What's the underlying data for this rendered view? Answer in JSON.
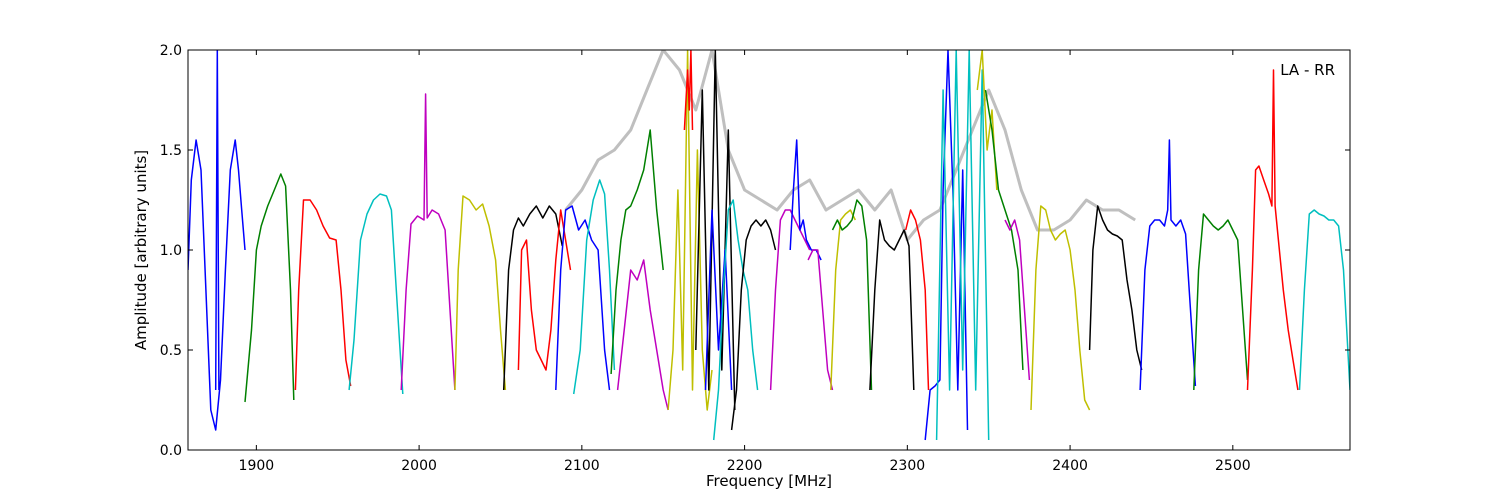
{
  "chart_data": {
    "type": "line",
    "title": "",
    "xlabel": "Frequency [MHz]",
    "ylabel": "Amplitude [arbitrary units]",
    "xlim": [
      1858,
      2572
    ],
    "ylim": [
      0,
      2.0
    ],
    "xticks": [
      1900,
      2000,
      2100,
      2200,
      2300,
      2400,
      2500
    ],
    "yticks": [
      0.0,
      0.5,
      1.0,
      1.5,
      2.0
    ],
    "xtick_labels": [
      "1900",
      "2000",
      "2100",
      "2200",
      "2300",
      "2400",
      "2500"
    ],
    "ytick_labels": [
      "0.0",
      "0.5",
      "1.0",
      "1.5",
      "2.0"
    ],
    "annotation": "LA - RR",
    "grid": false,
    "legend": "none",
    "background_color": "#bfbfbf",
    "background_series": [
      {
        "x": [
          2090,
          2100,
          2110,
          2120,
          2130,
          2140,
          2150,
          2160,
          2170,
          2180,
          2190,
          2200,
          2210,
          2220,
          2230,
          2240,
          2250,
          2260,
          2270,
          2280,
          2290,
          2300,
          2310,
          2320,
          2330,
          2340,
          2350,
          2360,
          2370,
          2380,
          2390,
          2400,
          2410,
          2420,
          2430,
          2440
        ],
        "y": [
          1.2,
          1.3,
          1.45,
          1.5,
          1.6,
          1.8,
          2.0,
          1.9,
          1.7,
          2.0,
          1.5,
          1.3,
          1.25,
          1.2,
          1.3,
          1.35,
          1.2,
          1.25,
          1.3,
          1.2,
          1.3,
          1.05,
          1.15,
          1.2,
          1.4,
          1.6,
          1.8,
          1.6,
          1.3,
          1.1,
          1.1,
          1.15,
          1.25,
          1.2,
          1.2,
          1.15
        ]
      }
    ],
    "series": [
      {
        "color": "#0000ff",
        "x": [
          1858,
          1860,
          1863,
          1866,
          1869,
          1872,
          1875,
          1878,
          1881,
          1884,
          1887,
          1889,
          1891,
          1893
        ],
        "y": [
          0.9,
          1.35,
          1.55,
          1.4,
          0.8,
          0.2,
          0.1,
          0.35,
          0.9,
          1.4,
          1.55,
          1.4,
          1.2,
          1.0
        ]
      },
      {
        "color": "#0000ff",
        "x": [
          1875,
          1876,
          1877
        ],
        "y": [
          0.3,
          2.0,
          0.3
        ]
      },
      {
        "color": "#008000",
        "x": [
          1893,
          1897,
          1900,
          1903,
          1907,
          1911,
          1915,
          1918,
          1921,
          1923
        ],
        "y": [
          0.24,
          0.6,
          1.0,
          1.12,
          1.22,
          1.3,
          1.38,
          1.32,
          0.8,
          0.25
        ]
      },
      {
        "color": "#ff0000",
        "x": [
          1924,
          1926,
          1929,
          1933,
          1937,
          1941,
          1945,
          1949,
          1952,
          1955,
          1958
        ],
        "y": [
          0.3,
          0.8,
          1.25,
          1.25,
          1.2,
          1.12,
          1.06,
          1.05,
          0.8,
          0.45,
          0.32
        ]
      },
      {
        "color": "#00bfbf",
        "x": [
          1957,
          1960,
          1964,
          1968,
          1972,
          1976,
          1980,
          1983,
          1986,
          1990
        ],
        "y": [
          0.3,
          0.55,
          1.05,
          1.18,
          1.25,
          1.28,
          1.27,
          1.2,
          0.8,
          0.28
        ]
      },
      {
        "color": "#bf00bf",
        "x": [
          1989,
          1992,
          1995,
          1999,
          2003,
          2004,
          2005,
          2008,
          2012,
          2016,
          2019,
          2022
        ],
        "y": [
          0.3,
          0.8,
          1.13,
          1.17,
          1.15,
          1.78,
          1.16,
          1.2,
          1.18,
          1.1,
          0.7,
          0.3
        ]
      },
      {
        "color": "#bfbf00",
        "x": [
          2022,
          2024,
          2027,
          2031,
          2035,
          2039,
          2043,
          2047,
          2050,
          2053
        ],
        "y": [
          0.3,
          0.9,
          1.27,
          1.25,
          1.2,
          1.23,
          1.12,
          0.95,
          0.6,
          0.3
        ]
      },
      {
        "color": "#000000",
        "x": [
          2052,
          2055,
          2058,
          2061,
          2064,
          2068,
          2072,
          2076,
          2080,
          2084,
          2088
        ],
        "y": [
          0.3,
          0.9,
          1.1,
          1.16,
          1.12,
          1.18,
          1.22,
          1.16,
          1.22,
          1.18,
          1.02
        ]
      },
      {
        "color": "#ff0000",
        "x": [
          2061,
          2063,
          2066,
          2069,
          2072,
          2075,
          2078,
          2081,
          2084,
          2087,
          2090,
          2093
        ],
        "y": [
          0.4,
          1.0,
          1.05,
          0.7,
          0.5,
          0.45,
          0.4,
          0.6,
          0.95,
          1.2,
          1.05,
          0.9
        ]
      },
      {
        "color": "#0000ff",
        "x": [
          2084,
          2087,
          2090,
          2094,
          2098,
          2102,
          2106,
          2110,
          2114,
          2117
        ],
        "y": [
          0.3,
          0.9,
          1.2,
          1.22,
          1.1,
          1.15,
          1.05,
          1.0,
          0.5,
          0.3
        ]
      },
      {
        "color": "#00bfbf",
        "x": [
          2095,
          2099,
          2103,
          2107,
          2111,
          2114,
          2117,
          2120
        ],
        "y": [
          0.28,
          0.5,
          1.05,
          1.25,
          1.35,
          1.28,
          0.9,
          0.4
        ]
      },
      {
        "color": "#008000",
        "x": [
          2118,
          2121,
          2124,
          2127,
          2130,
          2134,
          2138,
          2142,
          2146,
          2150
        ],
        "y": [
          0.38,
          0.8,
          1.05,
          1.2,
          1.22,
          1.3,
          1.4,
          1.6,
          1.2,
          0.9
        ]
      },
      {
        "color": "#bf00bf",
        "x": [
          2122,
          2126,
          2130,
          2134,
          2138,
          2142,
          2146,
          2150,
          2153
        ],
        "y": [
          0.3,
          0.6,
          0.9,
          0.85,
          0.95,
          0.7,
          0.5,
          0.3,
          0.2
        ]
      },
      {
        "color": "#bfbf00",
        "x": [
          2153,
          2156,
          2159,
          2162,
          2165,
          2168,
          2171,
          2174,
          2177,
          2180
        ],
        "y": [
          0.2,
          0.5,
          1.3,
          0.4,
          2.0,
          0.3,
          1.5,
          0.5,
          0.2,
          0.4
        ]
      },
      {
        "color": "#ff0000",
        "x": [
          2163,
          2165,
          2166,
          2167,
          2168
        ],
        "y": [
          1.6,
          1.9,
          1.7,
          2.0,
          1.6
        ]
      },
      {
        "color": "#000000",
        "x": [
          2170,
          2174,
          2178,
          2182,
          2186,
          2190,
          2194
        ],
        "y": [
          0.5,
          1.8,
          0.3,
          2.0,
          0.4,
          1.6,
          0.2
        ]
      },
      {
        "color": "#0000ff",
        "x": [
          2176,
          2180,
          2184,
          2188,
          2192
        ],
        "y": [
          0.3,
          1.2,
          0.5,
          1.0,
          0.3
        ]
      },
      {
        "color": "#00bfbf",
        "x": [
          2181,
          2184,
          2187,
          2190,
          2193,
          2196,
          2199,
          2202,
          2205,
          2208
        ],
        "y": [
          0.05,
          0.3,
          0.8,
          1.2,
          1.25,
          1.05,
          0.9,
          0.8,
          0.5,
          0.3
        ]
      },
      {
        "color": "#000000",
        "x": [
          2192,
          2195,
          2198,
          2201,
          2204,
          2207,
          2210,
          2213,
          2216,
          2219
        ],
        "y": [
          0.1,
          0.3,
          0.8,
          1.05,
          1.12,
          1.15,
          1.12,
          1.15,
          1.1,
          1.0
        ]
      },
      {
        "color": "#bf00bf",
        "x": [
          2216,
          2219,
          2222,
          2225,
          2228,
          2231,
          2234,
          2237,
          2240
        ],
        "y": [
          0.3,
          0.8,
          1.15,
          1.2,
          1.2,
          1.15,
          1.1,
          1.05,
          1.0
        ]
      },
      {
        "color": "#0000ff",
        "x": [
          2228,
          2230,
          2232,
          2234,
          2236,
          2238,
          2241,
          2244,
          2247
        ],
        "y": [
          1.0,
          1.3,
          1.55,
          1.1,
          1.15,
          1.05,
          1.0,
          1.0,
          0.95
        ]
      },
      {
        "color": "#bf00bf",
        "x": [
          2239,
          2242,
          2245,
          2248,
          2251,
          2254
        ],
        "y": [
          0.95,
          1.0,
          1.0,
          0.7,
          0.4,
          0.3
        ]
      },
      {
        "color": "#bfbf00",
        "x": [
          2253,
          2256,
          2259,
          2262,
          2265,
          2268
        ],
        "y": [
          0.3,
          0.9,
          1.15,
          1.18,
          1.2,
          1.15
        ]
      },
      {
        "color": "#008000",
        "x": [
          2254,
          2257,
          2260,
          2263,
          2266,
          2269,
          2272,
          2275,
          2278
        ],
        "y": [
          1.1,
          1.15,
          1.1,
          1.12,
          1.15,
          1.25,
          1.22,
          1.05,
          0.3
        ]
      },
      {
        "color": "#000000",
        "x": [
          2277,
          2280,
          2283,
          2286,
          2289,
          2292,
          2295,
          2298,
          2301,
          2304
        ],
        "y": [
          0.3,
          0.8,
          1.15,
          1.05,
          1.02,
          1.0,
          1.05,
          1.1,
          1.02,
          0.3
        ]
      },
      {
        "color": "#ff0000",
        "x": [
          2299,
          2302,
          2305,
          2308,
          2311,
          2313
        ],
        "y": [
          1.1,
          1.2,
          1.15,
          1.05,
          0.8,
          0.3
        ]
      },
      {
        "color": "#0000ff",
        "x": [
          2311,
          2314,
          2317,
          2320,
          2322,
          2325,
          2328,
          2331,
          2334,
          2337
        ],
        "y": [
          0.05,
          0.3,
          0.32,
          0.35,
          1.3,
          2.0,
          1.3,
          0.3,
          1.4,
          0.1
        ]
      },
      {
        "color": "#00bfbf",
        "x": [
          2318,
          2322,
          2326,
          2330,
          2334,
          2338,
          2342,
          2346,
          2350
        ],
        "y": [
          0.05,
          1.8,
          0.3,
          2.0,
          0.4,
          2.0,
          0.3,
          1.9,
          0.05
        ]
      },
      {
        "color": "#bfbf00",
        "x": [
          2343,
          2346,
          2349,
          2352,
          2355
        ],
        "y": [
          1.8,
          2.0,
          1.5,
          1.7,
          1.3
        ]
      },
      {
        "color": "#008000",
        "x": [
          2348,
          2352,
          2356,
          2360,
          2364,
          2368,
          2371
        ],
        "y": [
          1.8,
          1.6,
          1.3,
          1.2,
          1.1,
          0.9,
          0.4
        ]
      },
      {
        "color": "#bf00bf",
        "x": [
          2360,
          2363,
          2366,
          2369,
          2372,
          2375
        ],
        "y": [
          1.15,
          1.1,
          1.15,
          1.05,
          0.7,
          0.35
        ]
      },
      {
        "color": "#bfbf00",
        "x": [
          2376,
          2379,
          2382,
          2385,
          2388,
          2391,
          2394,
          2397,
          2400,
          2403,
          2406,
          2409,
          2412
        ],
        "y": [
          0.2,
          0.9,
          1.22,
          1.2,
          1.1,
          1.05,
          1.08,
          1.1,
          1.0,
          0.8,
          0.5,
          0.25,
          0.2
        ]
      },
      {
        "color": "#000000",
        "x": [
          2412,
          2414,
          2417,
          2420,
          2423,
          2426,
          2429,
          2432,
          2435,
          2438,
          2441,
          2444
        ],
        "y": [
          0.5,
          1.0,
          1.22,
          1.15,
          1.1,
          1.08,
          1.07,
          1.05,
          0.85,
          0.7,
          0.5,
          0.4
        ]
      },
      {
        "color": "#0000ff",
        "x": [
          2443,
          2446,
          2449,
          2452,
          2455,
          2458,
          2460,
          2461,
          2462,
          2465,
          2468,
          2471,
          2474,
          2477
        ],
        "y": [
          0.3,
          0.9,
          1.12,
          1.15,
          1.15,
          1.12,
          1.2,
          1.55,
          1.15,
          1.12,
          1.15,
          1.08,
          0.7,
          0.32
        ]
      },
      {
        "color": "#008000",
        "x": [
          2476,
          2479,
          2482,
          2485,
          2488,
          2491,
          2494,
          2497,
          2500,
          2503,
          2506,
          2509
        ],
        "y": [
          0.3,
          0.9,
          1.18,
          1.15,
          1.12,
          1.1,
          1.12,
          1.15,
          1.1,
          1.05,
          0.7,
          0.35
        ]
      },
      {
        "color": "#ff0000",
        "x": [
          2509,
          2512,
          2514,
          2516,
          2519,
          2522,
          2524,
          2525,
          2526,
          2528,
          2531,
          2534,
          2537,
          2540
        ],
        "y": [
          0.3,
          0.9,
          1.4,
          1.42,
          1.35,
          1.28,
          1.22,
          1.9,
          1.22,
          1.05,
          0.8,
          0.6,
          0.45,
          0.3
        ]
      },
      {
        "color": "#00bfbf",
        "x": [
          2541,
          2544,
          2547,
          2550,
          2553,
          2556,
          2559,
          2562,
          2565,
          2568,
          2572
        ],
        "y": [
          0.3,
          0.8,
          1.18,
          1.2,
          1.18,
          1.17,
          1.15,
          1.15,
          1.12,
          0.9,
          0.3
        ]
      }
    ]
  }
}
